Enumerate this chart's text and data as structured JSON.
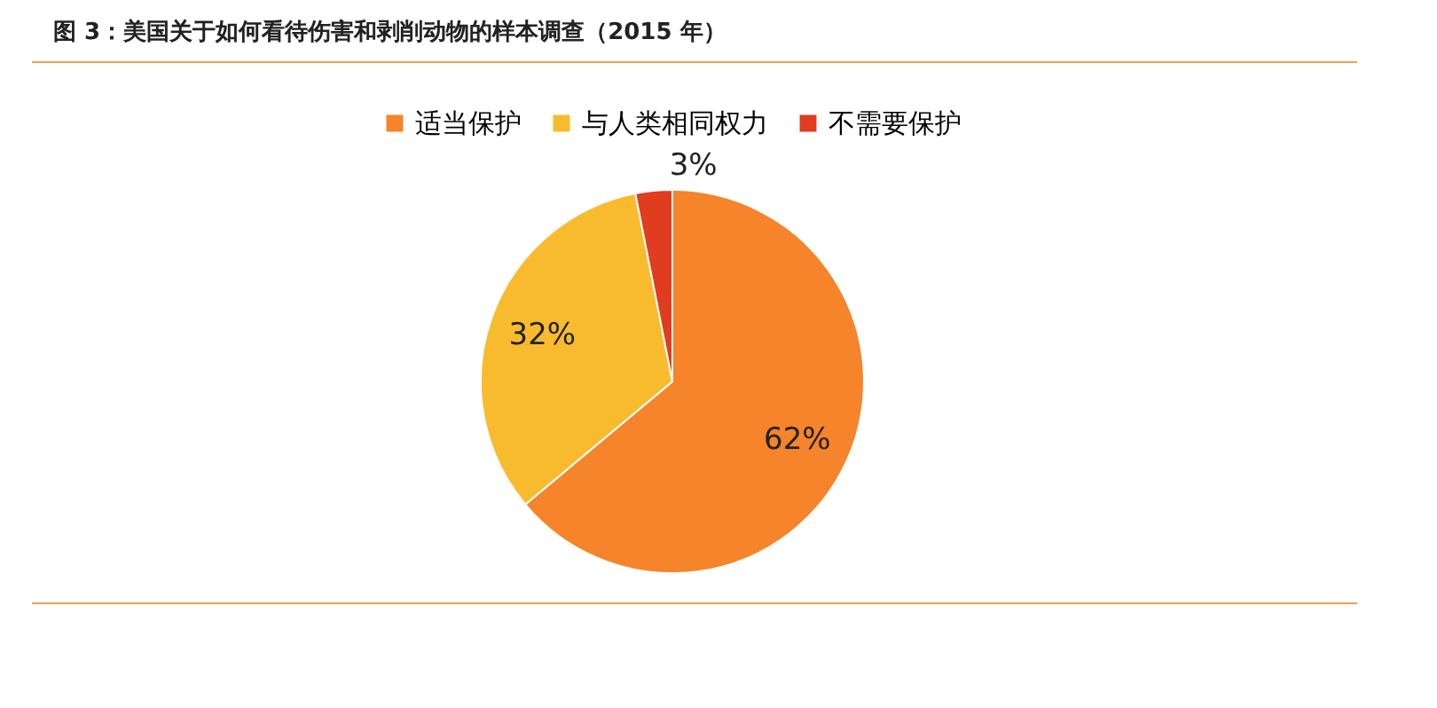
{
  "chart_data": {
    "type": "pie",
    "title": "图 3：美国关于如何看待伤害和剥削动物的样本调查（2015 年）",
    "categories": [
      "适当保护",
      "与人类相同权力",
      "不需要保护"
    ],
    "values": [
      62,
      32,
      3
    ],
    "colors": [
      "#f5842a",
      "#f9bb2e",
      "#e03c1f"
    ],
    "value_labels": [
      "62%",
      "32%",
      "3%"
    ],
    "legend": "top"
  }
}
